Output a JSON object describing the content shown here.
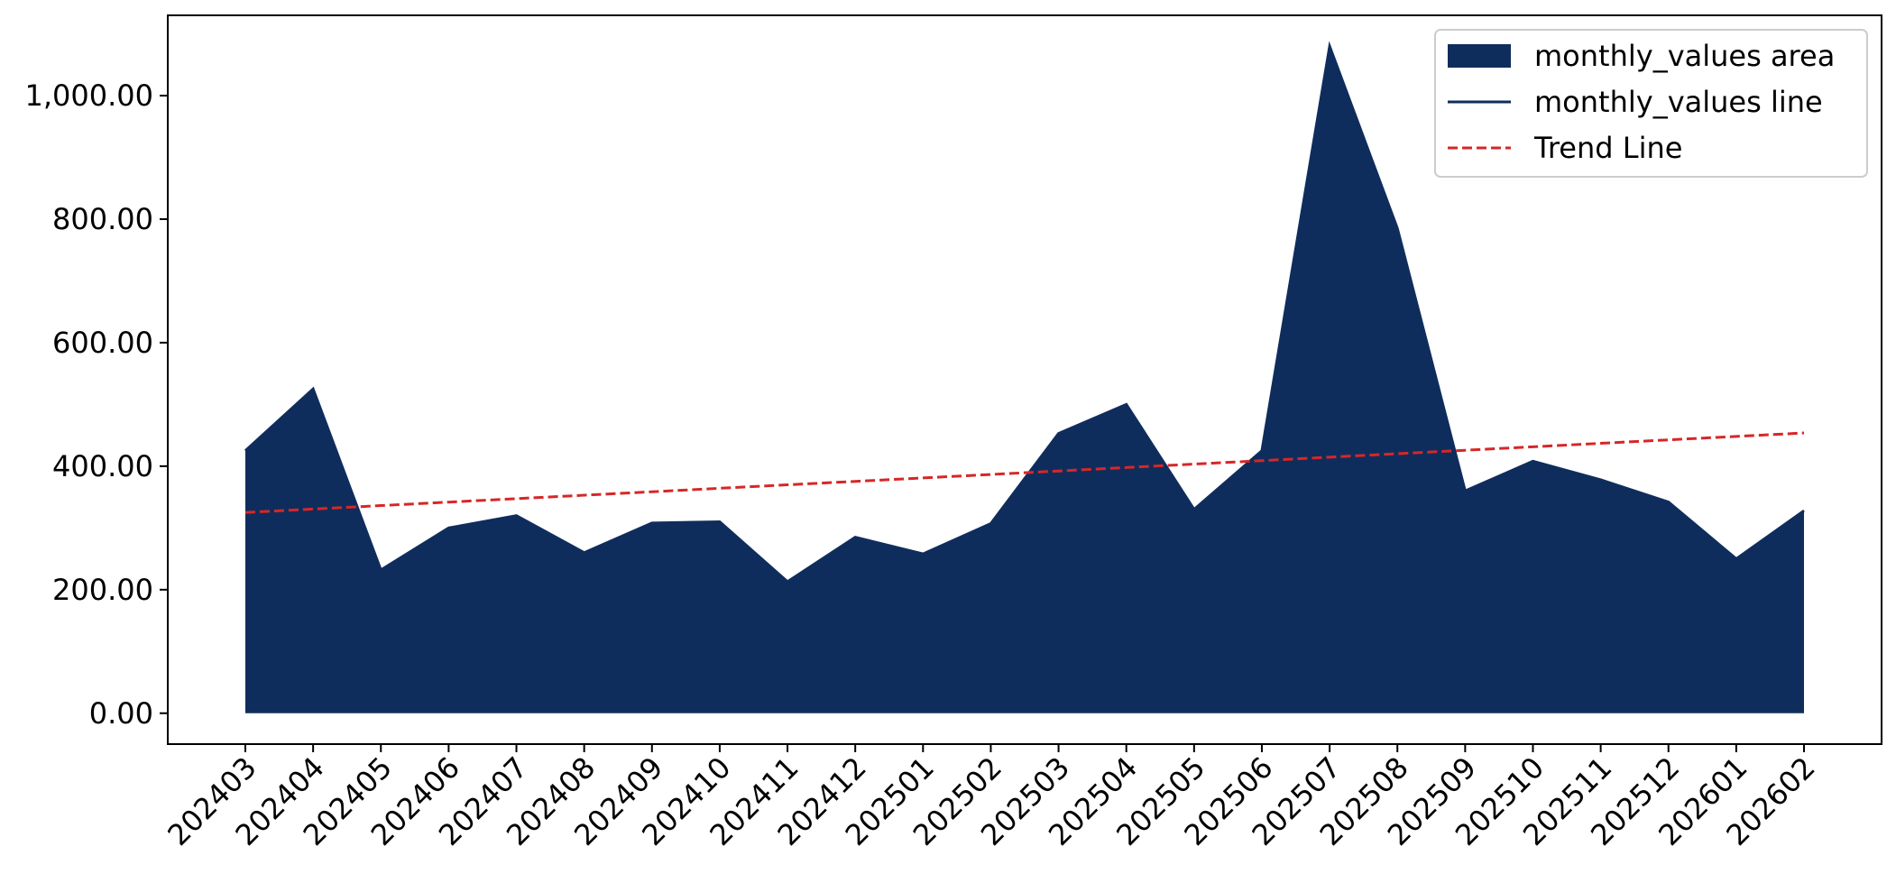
{
  "chart_data": {
    "type": "area",
    "title": "",
    "xlabel": "",
    "ylabel": "",
    "categories": [
      "202403",
      "202404",
      "202405",
      "202406",
      "202407",
      "202408",
      "202409",
      "202410",
      "202411",
      "202412",
      "202501",
      "202502",
      "202503",
      "202504",
      "202505",
      "202506",
      "202507",
      "202508",
      "202509",
      "202510",
      "202511",
      "202512",
      "202601",
      "202602"
    ],
    "series": [
      {
        "name": "monthly_values area",
        "type": "area",
        "color": "#0f2d5c",
        "values": [
          425,
          525,
          232,
          300,
          320,
          260,
          308,
          310,
          213,
          285,
          258,
          307,
          453,
          500,
          330,
          425,
          1080,
          785,
          360,
          408,
          378,
          342,
          250,
          328
        ]
      },
      {
        "name": "monthly_values line",
        "type": "line",
        "color": "#0f2d5c",
        "values": [
          425,
          525,
          232,
          300,
          320,
          260,
          308,
          310,
          213,
          285,
          258,
          307,
          453,
          500,
          330,
          425,
          1080,
          785,
          360,
          408,
          378,
          342,
          250,
          328
        ]
      },
      {
        "name": "Trend Line",
        "type": "line",
        "style": "dashed",
        "color": "#d62728",
        "values": [
          325,
          330.6,
          336.2,
          341.8,
          347.4,
          353,
          358.6,
          364.2,
          369.8,
          375.4,
          381,
          386.6,
          392.2,
          397.8,
          403.4,
          409,
          414.6,
          420.2,
          425.8,
          431.4,
          437,
          442.6,
          448.2,
          453.8
        ]
      }
    ],
    "ylim": [
      -50,
      1130
    ],
    "yticks": [
      0,
      200,
      400,
      600,
      800,
      1000
    ],
    "ytick_labels": [
      "0.00",
      "200.00",
      "400.00",
      "600.00",
      "800.00",
      "1,000.00"
    ],
    "grid": false,
    "legend_position": "top-right"
  }
}
